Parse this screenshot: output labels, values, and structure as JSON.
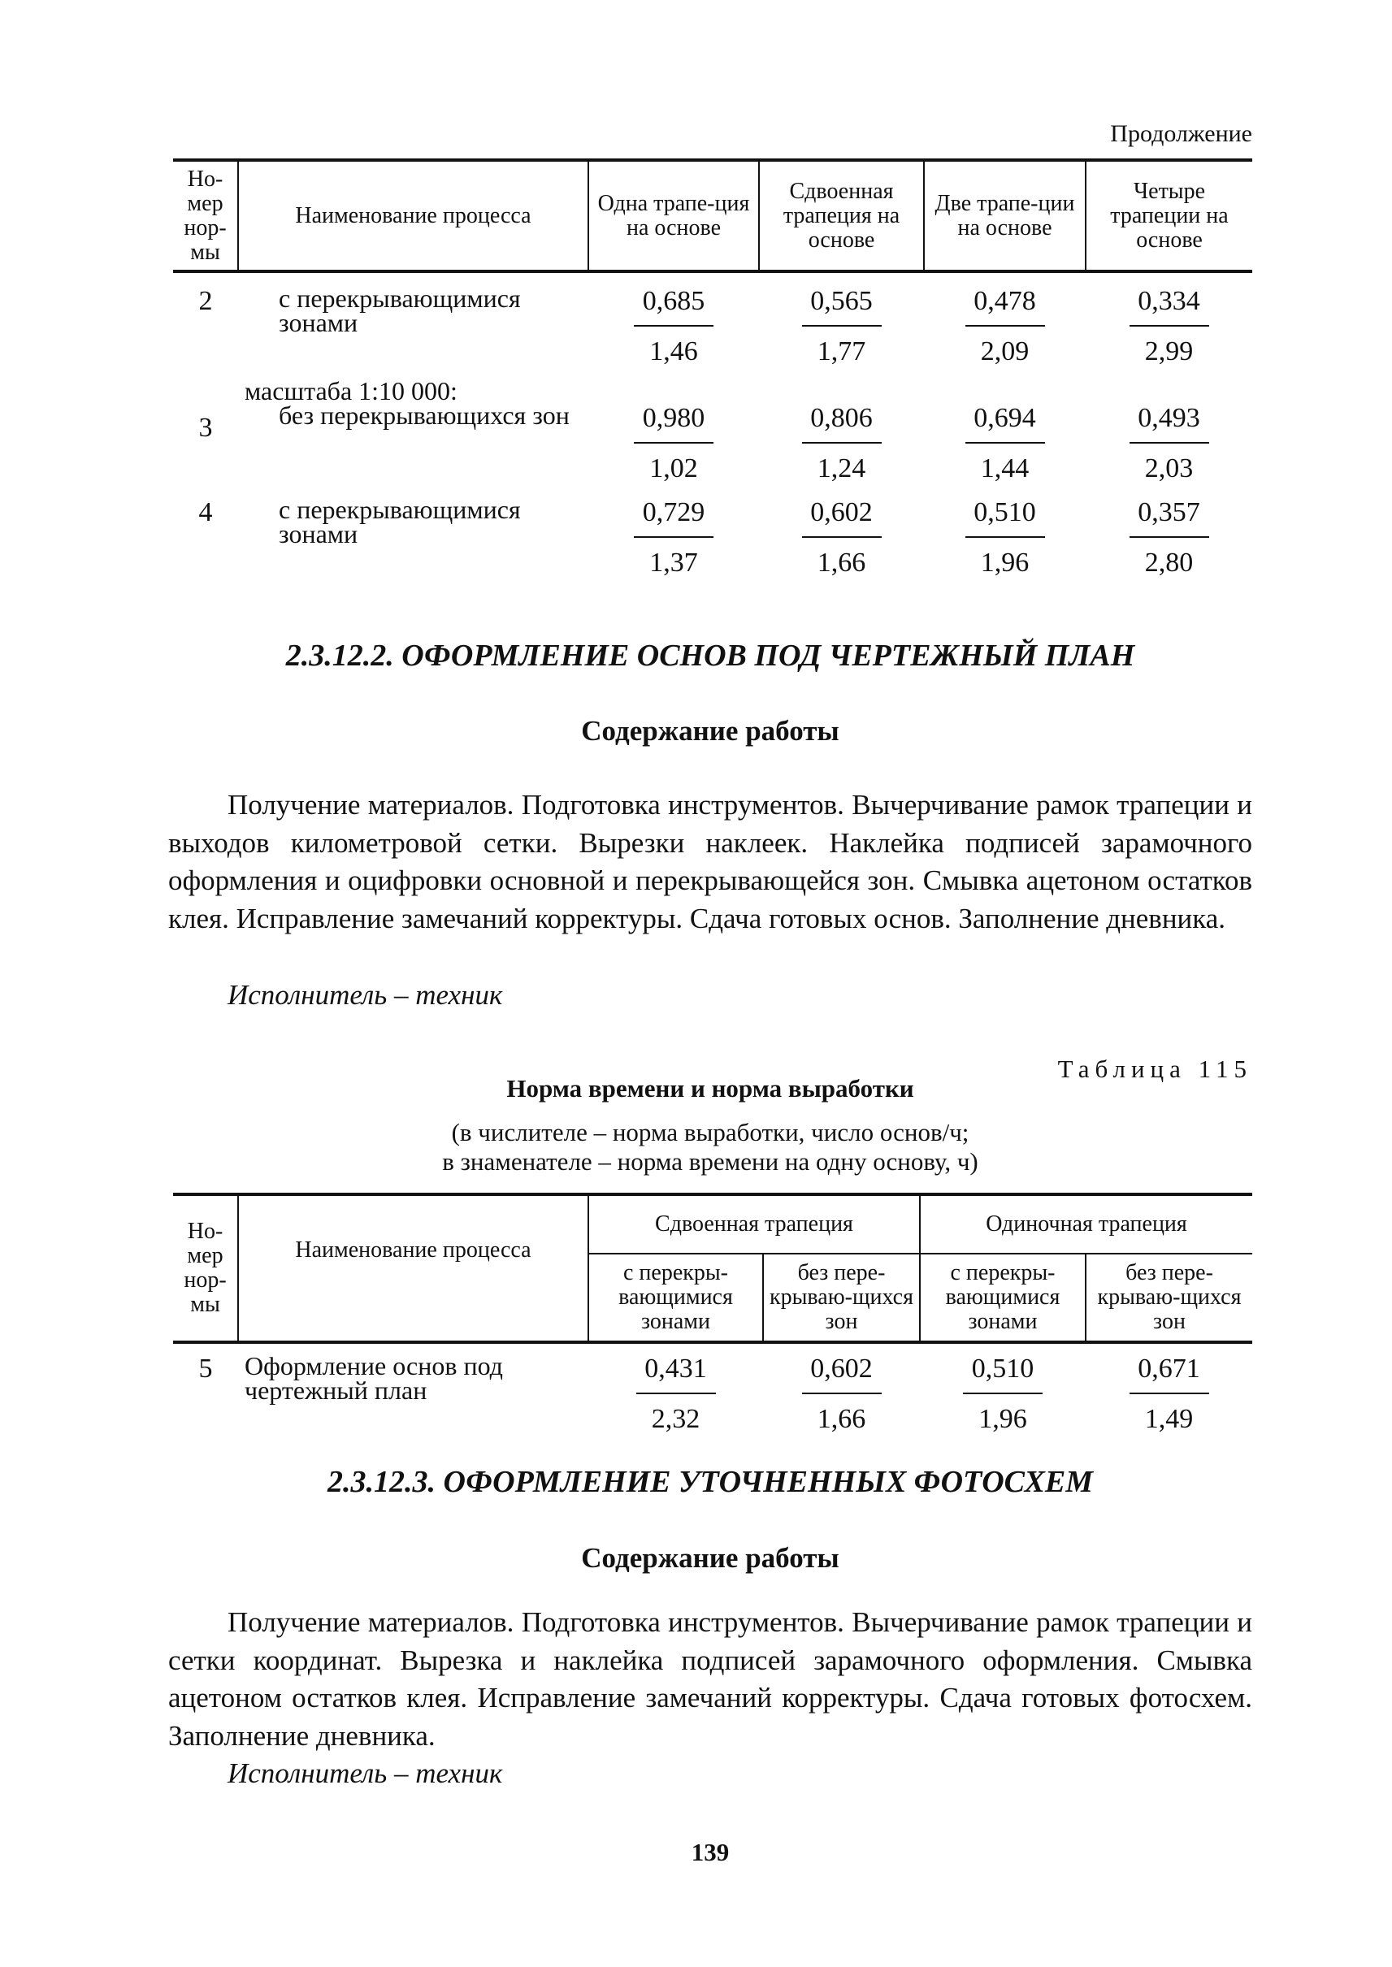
{
  "continuation_label": "Продолжение",
  "table1": {
    "headers": [
      "Но-мер нор-мы",
      "Наименование процесса",
      "Одна трапе-ция на основе",
      "Сдвоенная трапеция на основе",
      "Две трапе-ции на основе",
      "Четыре трапеции на основе"
    ],
    "rows": [
      {
        "no": "2",
        "process": "с перекрывающимися зонами",
        "values": [
          [
            "0,685",
            "1,46"
          ],
          [
            "0,565",
            "1,77"
          ],
          [
            "0,478",
            "2,09"
          ],
          [
            "0,334",
            "2,99"
          ]
        ]
      },
      {
        "group": "масштаба 1:10 000:"
      },
      {
        "no": "3",
        "process": "без перекрывающихся зон",
        "values": [
          [
            "0,980",
            "1,02"
          ],
          [
            "0,806",
            "1,24"
          ],
          [
            "0,694",
            "1,44"
          ],
          [
            "0,493",
            "2,03"
          ]
        ]
      },
      {
        "no": "4",
        "process": "с перекрывающимися зонами",
        "values": [
          [
            "0,729",
            "1,37"
          ],
          [
            "0,602",
            "1,66"
          ],
          [
            "0,510",
            "1,96"
          ],
          [
            "0,357",
            "2,80"
          ]
        ]
      }
    ]
  },
  "section1": {
    "heading": "2.3.12.2. ОФОРМЛЕНИЕ ОСНОВ ПОД ЧЕРТЕЖНЫЙ ПЛАН",
    "subheading": "Содержание работы",
    "paragraph": "Получение материалов. Подготовка инструментов. Вычерчивание рамок трапеции и выходов километровой сетки. Вырезки наклеек. Наклейка подписей зарамочного оформления и оцифровки основной и перекрывающейся зон. Смывка ацетоном остатков клея. Исправление замечаний корректуры. Сдача готовых основ. Заполнение дневника.",
    "executor": "Исполнитель – техник"
  },
  "table2": {
    "label": "Таблица 115",
    "title": "Норма времени и норма выработки",
    "note_line1": "(в числителе – норма выработки, число основ/ч;",
    "note_line2": "в знаменателе – норма времени на одну основу, ч)",
    "headers": {
      "no": "Но-мер нор-мы",
      "process": "Наименование процесса",
      "group1": "Сдвоенная трапеция",
      "group2": "Одиночная трапеция",
      "sub": [
        "с перекры-вающимися зонами",
        "без пере-крываю-щихся зон",
        "с перекры-вающимися зонами",
        "без пере-крываю-щихся зон"
      ]
    },
    "rows": [
      {
        "no": "5",
        "process": "Оформление основ под чертежный план",
        "values": [
          [
            "0,431",
            "2,32"
          ],
          [
            "0,602",
            "1,66"
          ],
          [
            "0,510",
            "1,96"
          ],
          [
            "0,671",
            "1,49"
          ]
        ]
      }
    ]
  },
  "section2": {
    "heading": "2.3.12.3. ОФОРМЛЕНИЕ УТОЧНЕННЫХ ФОТОСХЕМ",
    "subheading": "Содержание работы",
    "paragraph": "Получение материалов. Подготовка инструментов. Вычерчивание рамок трапеции и сетки координат. Вырезка и наклейка подписей зарамочного оформления. Смывка ацетоном остатков клея. Исправление замечаний корректуры. Сдача готовых фотосхем. Заполнение дневника.",
    "executor": "Исполнитель – техник"
  },
  "page_number": "139"
}
